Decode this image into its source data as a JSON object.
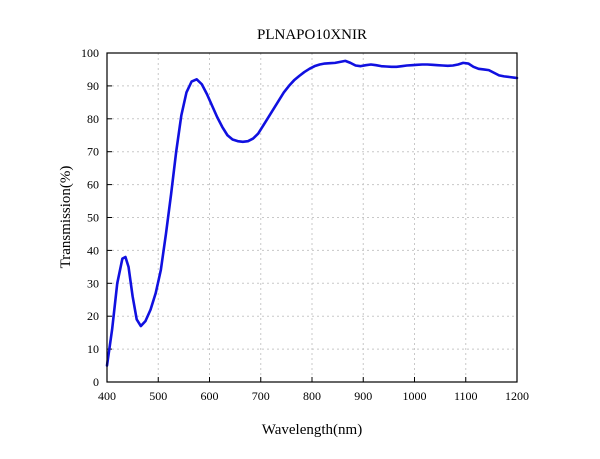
{
  "chart_data": {
    "type": "line",
    "title": "PLNAPO10XNIR",
    "xlabel": "Wavelength(nm)",
    "ylabel": "Transmission(%)",
    "xlim": [
      400,
      1200
    ],
    "ylim": [
      0,
      100
    ],
    "x_ticks": [
      400,
      500,
      600,
      700,
      800,
      900,
      1000,
      1100,
      1200
    ],
    "y_ticks": [
      0,
      10,
      20,
      30,
      40,
      50,
      60,
      70,
      80,
      90,
      100
    ],
    "grid": true,
    "series": [
      {
        "color": "#1010e0",
        "points": [
          [
            400,
            5
          ],
          [
            410,
            16
          ],
          [
            420,
            30
          ],
          [
            430,
            37.5
          ],
          [
            436,
            38
          ],
          [
            442,
            35
          ],
          [
            450,
            26
          ],
          [
            458,
            19
          ],
          [
            466,
            17
          ],
          [
            475,
            18.5
          ],
          [
            485,
            22
          ],
          [
            495,
            27
          ],
          [
            505,
            34
          ],
          [
            515,
            45
          ],
          [
            525,
            57
          ],
          [
            535,
            70
          ],
          [
            545,
            81
          ],
          [
            555,
            88
          ],
          [
            565,
            91.3
          ],
          [
            575,
            92
          ],
          [
            585,
            90.5
          ],
          [
            595,
            87.5
          ],
          [
            605,
            84
          ],
          [
            615,
            80.5
          ],
          [
            625,
            77.5
          ],
          [
            635,
            75
          ],
          [
            645,
            73.7
          ],
          [
            655,
            73.2
          ],
          [
            665,
            73
          ],
          [
            675,
            73.2
          ],
          [
            685,
            74
          ],
          [
            695,
            75.5
          ],
          [
            705,
            78
          ],
          [
            715,
            80.5
          ],
          [
            725,
            83
          ],
          [
            735,
            85.5
          ],
          [
            745,
            88
          ],
          [
            755,
            90
          ],
          [
            765,
            91.7
          ],
          [
            775,
            93
          ],
          [
            785,
            94.2
          ],
          [
            795,
            95.2
          ],
          [
            805,
            96
          ],
          [
            815,
            96.5
          ],
          [
            825,
            96.8
          ],
          [
            835,
            96.9
          ],
          [
            845,
            97
          ],
          [
            855,
            97.3
          ],
          [
            865,
            97.6
          ],
          [
            875,
            97
          ],
          [
            885,
            96.2
          ],
          [
            895,
            96
          ],
          [
            905,
            96.3
          ],
          [
            915,
            96.5
          ],
          [
            925,
            96.3
          ],
          [
            935,
            96
          ],
          [
            945,
            95.9
          ],
          [
            955,
            95.8
          ],
          [
            965,
            95.8
          ],
          [
            975,
            96
          ],
          [
            985,
            96.2
          ],
          [
            995,
            96.3
          ],
          [
            1005,
            96.4
          ],
          [
            1015,
            96.5
          ],
          [
            1025,
            96.5
          ],
          [
            1035,
            96.4
          ],
          [
            1045,
            96.3
          ],
          [
            1055,
            96.2
          ],
          [
            1065,
            96.1
          ],
          [
            1075,
            96.2
          ],
          [
            1085,
            96.5
          ],
          [
            1095,
            97
          ],
          [
            1105,
            96.8
          ],
          [
            1115,
            95.8
          ],
          [
            1125,
            95.2
          ],
          [
            1135,
            95
          ],
          [
            1145,
            94.8
          ],
          [
            1155,
            94
          ],
          [
            1165,
            93.2
          ],
          [
            1175,
            92.9
          ],
          [
            1185,
            92.7
          ],
          [
            1195,
            92.5
          ],
          [
            1200,
            92.4
          ]
        ]
      }
    ]
  }
}
